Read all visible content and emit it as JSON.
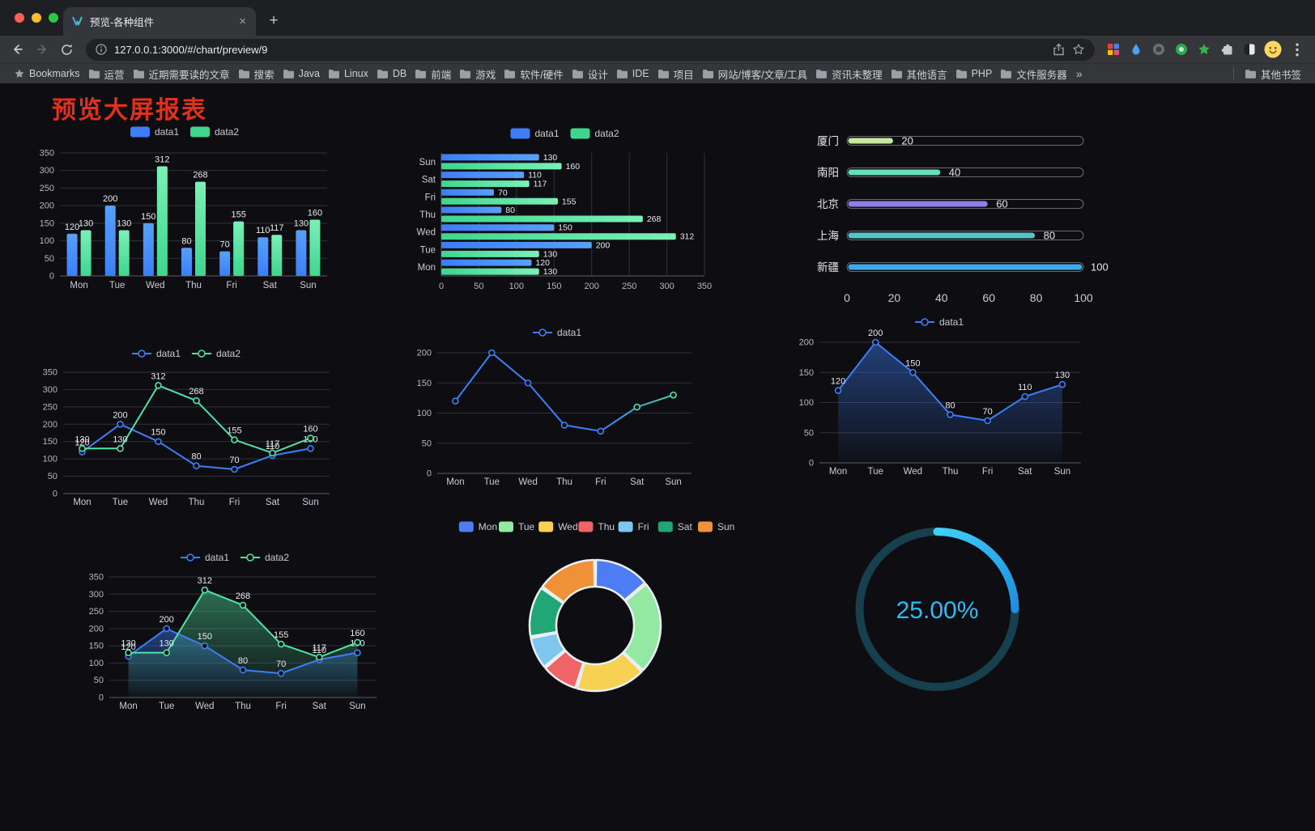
{
  "browser": {
    "tab_title": "预览-各种组件",
    "tab_close": "×",
    "new_tab": "+",
    "url": "127.0.0.1:3000/#/chart/preview/9",
    "bookmarks_button": "Bookmarks",
    "bookmark_folders": [
      "运营",
      "近期需要读的文章",
      "搜索",
      "Java",
      "Linux",
      "DB",
      "前端",
      "游戏",
      "软件/硬件",
      "设计",
      "IDE",
      "项目",
      "网站/博客/文章/工具",
      "资讯未整理",
      "其他语言",
      "PHP",
      "文件服务器"
    ],
    "bookmarks_overflow": "»",
    "other_bookmarks": "其他书签",
    "icons": [
      "window-close",
      "window-minimize",
      "window-zoom",
      "tab-favicon",
      "tab-close",
      "new-tab",
      "back",
      "forward",
      "reload",
      "site-info",
      "share",
      "bookmark-star",
      "extension-grid",
      "extension-blue-drop",
      "extension-dark-circle",
      "extension-green-circle",
      "extension-green-star",
      "puzzle",
      "dark-light-toggle",
      "profile-avatar",
      "kebab-menu",
      "bookmarks-star",
      "folder"
    ]
  },
  "page": {
    "title": "预览大屏报表",
    "title_color": "#e0301e",
    "background": "#0e0e12"
  },
  "chart_data": [
    {
      "id": "chart-bar",
      "type": "bar",
      "categories": [
        "Mon",
        "Tue",
        "Wed",
        "Thu",
        "Fri",
        "Sat",
        "Sun"
      ],
      "series": [
        {
          "name": "data1",
          "color": "#3D7EF8",
          "color_light": "#57A0F8",
          "values": [
            120,
            200,
            150,
            80,
            70,
            110,
            130
          ]
        },
        {
          "name": "data2",
          "color": "#3ED68F",
          "color_light": "#7BF0B7",
          "values": [
            130,
            130,
            312,
            268,
            155,
            117,
            160
          ]
        }
      ],
      "ylim": [
        0,
        350
      ],
      "yticks": [
        0,
        50,
        100,
        150,
        200,
        250,
        300,
        350
      ],
      "show_labels": true,
      "legend_position": "top"
    },
    {
      "id": "chart-hbar",
      "type": "hbar",
      "categories": [
        "Mon",
        "Tue",
        "Wed",
        "Thu",
        "Fri",
        "Sat",
        "Sun"
      ],
      "series": [
        {
          "name": "data1",
          "color": "#3D7EF8",
          "color_light": "#57A0F8",
          "values": [
            120,
            200,
            150,
            80,
            70,
            110,
            130
          ]
        },
        {
          "name": "data2",
          "color": "#3ED68F",
          "color_light": "#7BF0B7",
          "values": [
            130,
            130,
            312,
            268,
            155,
            117,
            160
          ]
        }
      ],
      "xlim": [
        0,
        350
      ],
      "xticks": [
        0,
        50,
        100,
        150,
        200,
        250,
        300,
        350
      ],
      "show_labels": true,
      "legend_position": "top"
    },
    {
      "id": "chart-progress",
      "type": "progress",
      "max": 100,
      "xticks": [
        0,
        20,
        40,
        60,
        80,
        100
      ],
      "items": [
        {
          "label": "厦门",
          "value": 20,
          "color": "#C8E89E"
        },
        {
          "label": "南阳",
          "value": 40,
          "color": "#67E0B9"
        },
        {
          "label": "北京",
          "value": 60,
          "color": "#8E7EE8"
        },
        {
          "label": "上海",
          "value": 80,
          "color": "#55C4C8"
        },
        {
          "label": "新疆",
          "value": 100,
          "color": "#3FA9E8"
        }
      ]
    },
    {
      "id": "chart-line2",
      "type": "line",
      "categories": [
        "Mon",
        "Tue",
        "Wed",
        "Thu",
        "Fri",
        "Sat",
        "Sun"
      ],
      "series": [
        {
          "name": "data1",
          "color": "#3D7EF8",
          "values": [
            120,
            200,
            150,
            80,
            70,
            110,
            130
          ]
        },
        {
          "name": "data2",
          "color": "#4FE3A3",
          "values": [
            130,
            130,
            312,
            268,
            155,
            117,
            160
          ]
        }
      ],
      "ylim": [
        0,
        350
      ],
      "yticks": [
        0,
        50,
        100,
        150,
        200,
        250,
        300,
        350
      ],
      "show_labels": true
    },
    {
      "id": "chart-line1",
      "type": "line",
      "categories": [
        "Mon",
        "Tue",
        "Wed",
        "Thu",
        "Fri",
        "Sat",
        "Sun"
      ],
      "series": [
        {
          "name": "data1",
          "color": "#3D7EF8",
          "color_end": "#4FE3A3",
          "values": [
            120,
            200,
            150,
            80,
            70,
            110,
            130
          ]
        }
      ],
      "ylim": [
        0,
        200
      ],
      "yticks": [
        0,
        50,
        100,
        150,
        200
      ],
      "show_labels": false
    },
    {
      "id": "chart-area1",
      "type": "line",
      "categories": [
        "Mon",
        "Tue",
        "Wed",
        "Thu",
        "Fri",
        "Sat",
        "Sun"
      ],
      "series": [
        {
          "name": "data1",
          "color": "#3D7EF8",
          "values": [
            120,
            200,
            150,
            80,
            70,
            110,
            130
          ],
          "area": true
        }
      ],
      "ylim": [
        0,
        200
      ],
      "yticks": [
        0,
        50,
        100,
        150,
        200
      ],
      "show_labels": true
    },
    {
      "id": "chart-area2",
      "type": "line",
      "categories": [
        "Mon",
        "Tue",
        "Wed",
        "Thu",
        "Fri",
        "Sat",
        "Sun"
      ],
      "series": [
        {
          "name": "data1",
          "color": "#3D7EF8",
          "values": [
            120,
            200,
            150,
            80,
            70,
            110,
            130
          ],
          "area": true
        },
        {
          "name": "data2",
          "color": "#4FE3A3",
          "values": [
            130,
            130,
            312,
            268,
            155,
            117,
            160
          ],
          "area": true
        }
      ],
      "ylim": [
        0,
        350
      ],
      "yticks": [
        0,
        50,
        100,
        150,
        200,
        250,
        300,
        350
      ],
      "show_labels": true
    },
    {
      "id": "chart-pie",
      "type": "pie",
      "inner_radius": 48,
      "outer_radius": 81,
      "items": [
        {
          "label": "Mon",
          "value": 120,
          "color": "#4E7CF2"
        },
        {
          "label": "Tue",
          "value": 200,
          "color": "#93E8A2"
        },
        {
          "label": "Wed",
          "value": 150,
          "color": "#F7D154"
        },
        {
          "label": "Thu",
          "value": 80,
          "color": "#EF6567"
        },
        {
          "label": "Fri",
          "value": 70,
          "color": "#7CC6EF"
        },
        {
          "label": "Sat",
          "value": 110,
          "color": "#21A675"
        },
        {
          "label": "Sun",
          "value": 130,
          "color": "#F09138"
        }
      ]
    },
    {
      "id": "chart-gauge",
      "type": "gauge",
      "value": 25,
      "max": 100,
      "label": "25.00%",
      "color": "#2FBCF2",
      "color_start": "#3FD0F7",
      "color_end": "#1E8FE0",
      "track_color": "#17404E"
    }
  ]
}
